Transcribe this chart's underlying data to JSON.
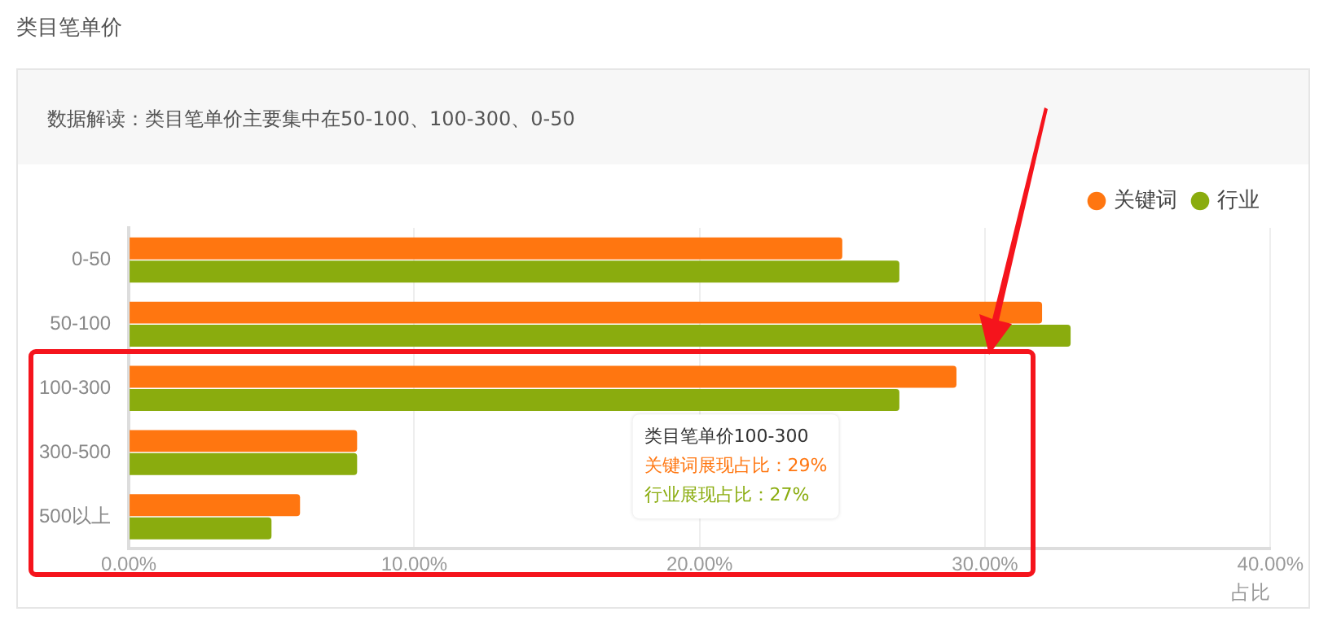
{
  "chart_data": {
    "type": "bar",
    "orientation": "horizontal",
    "title": "类目笔单价",
    "subtitle": "数据解读：类目笔单价主要集中在50-100、100-300、0-50",
    "xlabel": "占比",
    "categories": [
      "0-50",
      "50-100",
      "100-300",
      "300-500",
      "500以上"
    ],
    "series": [
      {
        "name": "关键词",
        "color": "#ff7610",
        "values": [
          25,
          32,
          29,
          8,
          6
        ]
      },
      {
        "name": "行业",
        "color": "#8aac0e",
        "values": [
          27,
          33,
          27,
          8,
          5
        ]
      }
    ],
    "xlim": [
      0,
      40
    ],
    "xticks": [
      {
        "value": 0,
        "label": "0.00%"
      },
      {
        "value": 10,
        "label": "10.00%"
      },
      {
        "value": 20,
        "label": "20.00%"
      },
      {
        "value": 30,
        "label": "30.00%"
      },
      {
        "value": 40,
        "label": "40.00%"
      }
    ],
    "grid": "x",
    "legend": "top right",
    "marker": "circle",
    "annotations": [
      "类目笔单价100-300",
      "关键词展现占比：29%",
      "行业展现占比：27%"
    ]
  }
}
